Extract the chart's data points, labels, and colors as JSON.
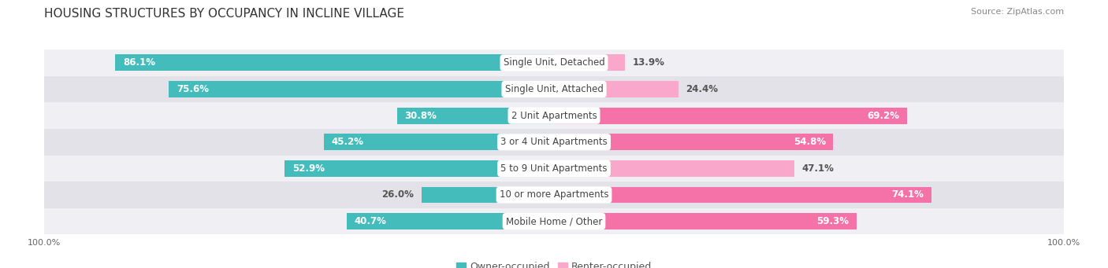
{
  "title": "HOUSING STRUCTURES BY OCCUPANCY IN INCLINE VILLAGE",
  "source": "Source: ZipAtlas.com",
  "categories": [
    "Single Unit, Detached",
    "Single Unit, Attached",
    "2 Unit Apartments",
    "3 or 4 Unit Apartments",
    "5 to 9 Unit Apartments",
    "10 or more Apartments",
    "Mobile Home / Other"
  ],
  "owner_pct": [
    86.1,
    75.6,
    30.8,
    45.2,
    52.9,
    26.0,
    40.7
  ],
  "renter_pct": [
    13.9,
    24.4,
    69.2,
    54.8,
    47.1,
    74.1,
    59.3
  ],
  "owner_color": "#45BCBC",
  "renter_color": "#F472A8",
  "renter_color_light": "#F9A8CC",
  "row_bg_light": "#F0F0F4",
  "row_bg_dark": "#E2E2E8",
  "title_fontsize": 11,
  "source_fontsize": 8,
  "bar_label_fontsize": 8.5,
  "cat_label_fontsize": 8.5,
  "legend_fontsize": 9,
  "axis_label_fontsize": 8,
  "bar_height": 0.62,
  "figsize": [
    14.06,
    3.41
  ]
}
